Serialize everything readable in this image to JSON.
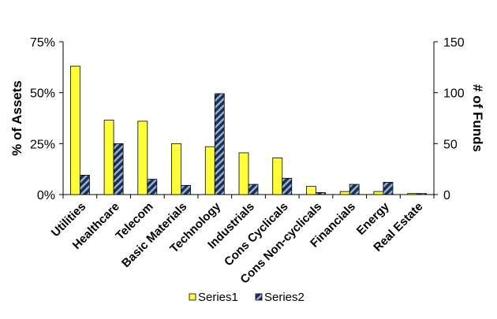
{
  "chart_data": {
    "type": "bar",
    "categories": [
      "Utilities",
      "Healthcare",
      "Telecom",
      "Basic Materials",
      "Technology",
      "Industrials",
      "Cons Cyclicals",
      "Cons Non-cyclicals",
      "Financials",
      "Energy",
      "Real Estate"
    ],
    "series": [
      {
        "name": "Series1",
        "axis": "left",
        "color": "#ffff33",
        "values": [
          63,
          36.5,
          36,
          25,
          23.5,
          20.5,
          18,
          4,
          1.5,
          1.5,
          0.5
        ]
      },
      {
        "name": "Series2",
        "axis": "right",
        "color": "#1f2f4a",
        "values": [
          19,
          50,
          15,
          9,
          99,
          10,
          16,
          2,
          10,
          12,
          1
        ]
      }
    ],
    "title": "",
    "ylabel": "% of Assets",
    "y2label": "# of Funds",
    "ylim": [
      0,
      75
    ],
    "y2lim": [
      0,
      150
    ],
    "yticks": [
      "0%",
      "25%",
      "50%",
      "75%"
    ],
    "y2ticks": [
      "0",
      "50",
      "100",
      "150"
    ],
    "legend": "bottom",
    "grid": false
  }
}
